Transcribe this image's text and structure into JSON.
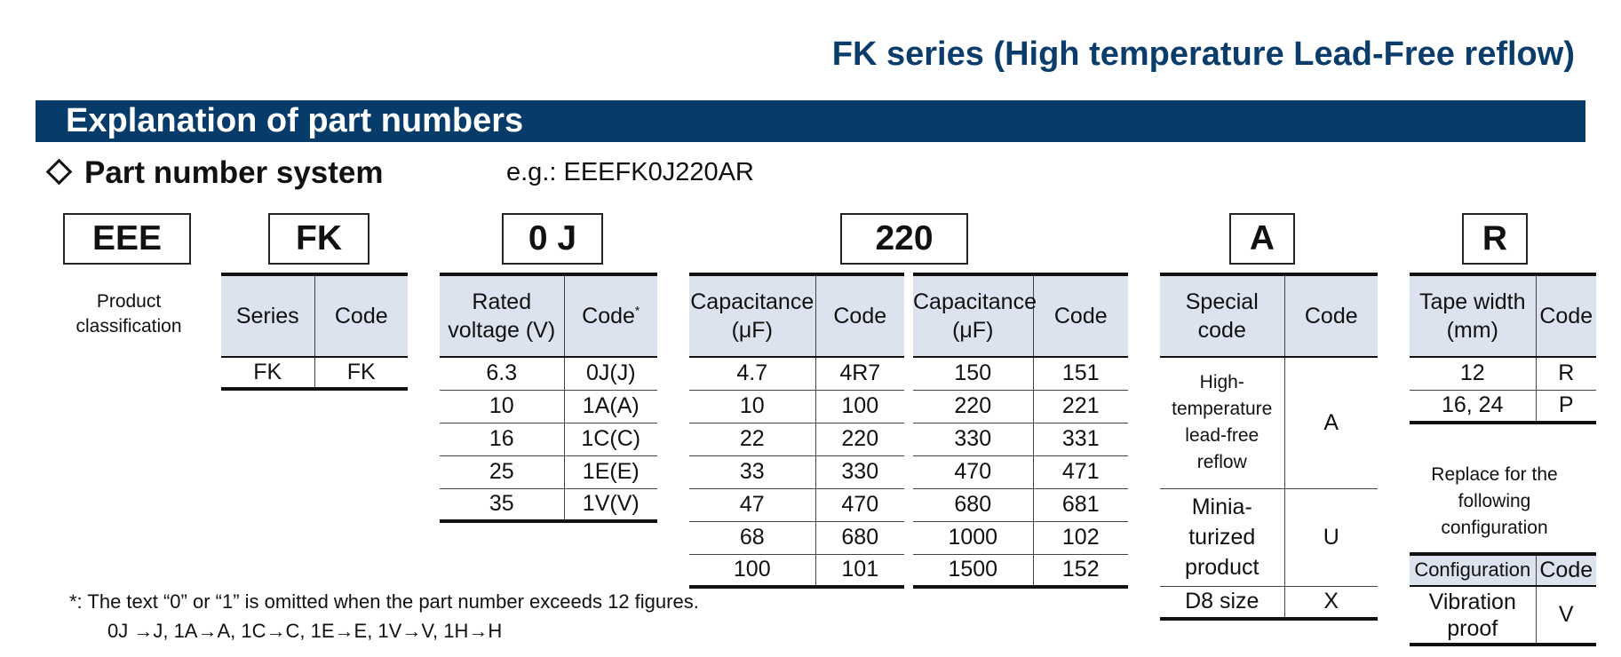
{
  "header": {
    "series_title": "FK series (High temperature Lead-Free reflow)",
    "banner": "Explanation of part numbers",
    "section": "Part number system",
    "example": "e.g.: EEEFK0J220AR"
  },
  "code_boxes": [
    "EEE",
    "FK",
    "0 J",
    "220",
    "A",
    "R"
  ],
  "product_classification": "Product\nclassification",
  "series_table": {
    "headers": [
      "Series",
      "Code"
    ],
    "rows": [
      [
        "FK",
        "FK"
      ]
    ]
  },
  "voltage_table": {
    "headers": [
      "Rated voltage (V)",
      "Code"
    ],
    "header_mark": "*",
    "rows": [
      [
        "6.3",
        "0J(J)"
      ],
      [
        "10",
        "1A(A)"
      ],
      [
        "16",
        "1C(C)"
      ],
      [
        "25",
        "1E(E)"
      ],
      [
        "35",
        "1V(V)"
      ]
    ]
  },
  "capacitance_table_1": {
    "headers": [
      "Capacitance (μF)",
      "Code"
    ],
    "rows": [
      [
        "4.7",
        "4R7"
      ],
      [
        "10",
        "100"
      ],
      [
        "22",
        "220"
      ],
      [
        "33",
        "330"
      ],
      [
        "47",
        "470"
      ],
      [
        "68",
        "680"
      ],
      [
        "100",
        "101"
      ]
    ]
  },
  "capacitance_table_2": {
    "headers": [
      "Capacitance (μF)",
      "Code"
    ],
    "rows": [
      [
        "150",
        "151"
      ],
      [
        "220",
        "221"
      ],
      [
        "330",
        "331"
      ],
      [
        "470",
        "471"
      ],
      [
        "680",
        "681"
      ],
      [
        "1000",
        "102"
      ],
      [
        "1500",
        "152"
      ]
    ]
  },
  "special_table": {
    "headers": [
      "Special code",
      "Code"
    ],
    "rows": [
      [
        "High-temperature lead-free reflow",
        "A"
      ],
      [
        "Minia-turized product",
        "U"
      ],
      [
        "D8 size",
        "X"
      ]
    ]
  },
  "tape_table": {
    "headers": [
      "Tape width (mm)",
      "Code"
    ],
    "rows": [
      [
        "12",
        "R"
      ],
      [
        "16, 24",
        "P"
      ]
    ]
  },
  "replace_note": "Replace for the\nfollowing\nconfiguration",
  "config_table": {
    "headers": [
      "Configuration",
      "Code"
    ],
    "rows": [
      [
        "Vibration proof",
        "V"
      ]
    ]
  },
  "footnote": {
    "line1": "*: The text “0” or “1” is omitted when the part number exceeds 12 figures.",
    "line2": "0J →J, 1A→A, 1C→C, 1E→E, 1V→V, 1H→H"
  }
}
